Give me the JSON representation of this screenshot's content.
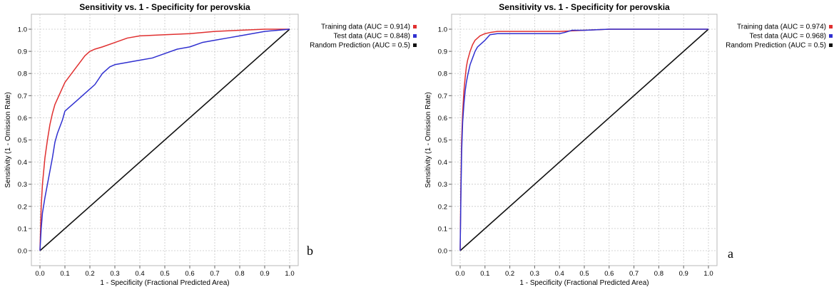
{
  "chart_data": [
    {
      "type": "line",
      "title": "Sensitivity vs. 1 - Specificity for perovskia",
      "xlabel": "1 - Specificity  (Fractional Predicted Area)",
      "ylabel": "Sensitivity  (1 - Omission Rate)",
      "xlim": [
        0,
        1
      ],
      "ylim": [
        0,
        1
      ],
      "grid": true,
      "legend_position": "outside-right-top",
      "panel_label": "b",
      "x_ticks": [
        "0.0",
        "0.1",
        "0.2",
        "0.3",
        "0.4",
        "0.5",
        "0.6",
        "0.7",
        "0.8",
        "0.9",
        "1.0"
      ],
      "y_ticks": [
        "0.0",
        "0.1",
        "0.2",
        "0.3",
        "0.4",
        "0.5",
        "0.6",
        "0.7",
        "0.8",
        "0.9",
        "1.0"
      ],
      "series": [
        {
          "name": "Training data (AUC = 0.914)",
          "color": "#e03030",
          "x": [
            0,
            0.005,
            0.01,
            0.015,
            0.02,
            0.03,
            0.04,
            0.05,
            0.06,
            0.08,
            0.1,
            0.12,
            0.14,
            0.16,
            0.18,
            0.2,
            0.22,
            0.25,
            0.3,
            0.35,
            0.4,
            0.5,
            0.6,
            0.7,
            0.8,
            0.9,
            1.0
          ],
          "y": [
            0,
            0.2,
            0.3,
            0.36,
            0.42,
            0.5,
            0.57,
            0.62,
            0.66,
            0.71,
            0.76,
            0.79,
            0.82,
            0.85,
            0.88,
            0.9,
            0.91,
            0.92,
            0.94,
            0.96,
            0.97,
            0.975,
            0.98,
            0.99,
            0.995,
            1.0,
            1.0
          ]
        },
        {
          "name": "Test data (AUC = 0.848)",
          "color": "#3030d0",
          "x": [
            0,
            0.005,
            0.01,
            0.02,
            0.03,
            0.04,
            0.05,
            0.06,
            0.07,
            0.08,
            0.09,
            0.1,
            0.12,
            0.14,
            0.16,
            0.18,
            0.2,
            0.22,
            0.25,
            0.28,
            0.3,
            0.35,
            0.4,
            0.45,
            0.5,
            0.55,
            0.6,
            0.65,
            0.7,
            0.75,
            0.8,
            0.9,
            1.0
          ],
          "y": [
            0,
            0.1,
            0.17,
            0.24,
            0.3,
            0.36,
            0.42,
            0.49,
            0.53,
            0.56,
            0.59,
            0.63,
            0.65,
            0.67,
            0.69,
            0.71,
            0.73,
            0.75,
            0.8,
            0.83,
            0.84,
            0.85,
            0.86,
            0.87,
            0.89,
            0.91,
            0.92,
            0.94,
            0.95,
            0.96,
            0.97,
            0.99,
            1.0
          ]
        },
        {
          "name": "Random Prediction (AUC = 0.5)",
          "color": "#111111",
          "x": [
            0,
            1
          ],
          "y": [
            0,
            1
          ]
        }
      ]
    },
    {
      "type": "line",
      "title": "Sensitivity vs. 1 - Specificity for perovskia",
      "xlabel": "1 - Specificity  (Fractional Predicted Area)",
      "ylabel": "Sensitivity  (1 - Omission Rate)",
      "xlim": [
        0,
        1
      ],
      "ylim": [
        0,
        1
      ],
      "grid": true,
      "legend_position": "outside-right-top",
      "panel_label": "a",
      "x_ticks": [
        "0.0",
        "0.1",
        "0.2",
        "0.3",
        "0.4",
        "0.5",
        "0.6",
        "0.7",
        "0.8",
        "0.9",
        "1.0"
      ],
      "y_ticks": [
        "0.0",
        "0.1",
        "0.2",
        "0.3",
        "0.4",
        "0.5",
        "0.6",
        "0.7",
        "0.8",
        "0.9",
        "1.0"
      ],
      "series": [
        {
          "name": "Training data (AUC = 0.974)",
          "color": "#e03030",
          "x": [
            0,
            0.003,
            0.006,
            0.01,
            0.015,
            0.02,
            0.025,
            0.03,
            0.04,
            0.05,
            0.06,
            0.08,
            0.1,
            0.12,
            0.15,
            0.2,
            0.3,
            0.4,
            0.5,
            0.6,
            0.7,
            0.8,
            0.9,
            1.0
          ],
          "y": [
            0,
            0.3,
            0.5,
            0.62,
            0.72,
            0.78,
            0.83,
            0.86,
            0.9,
            0.93,
            0.95,
            0.97,
            0.98,
            0.985,
            0.99,
            0.99,
            0.99,
            0.99,
            0.995,
            1.0,
            1.0,
            1.0,
            1.0,
            1.0
          ]
        },
        {
          "name": "Test data (AUC = 0.968)",
          "color": "#3030d0",
          "x": [
            0,
            0.003,
            0.006,
            0.01,
            0.015,
            0.02,
            0.025,
            0.03,
            0.04,
            0.05,
            0.06,
            0.07,
            0.08,
            0.1,
            0.12,
            0.15,
            0.2,
            0.3,
            0.4,
            0.42,
            0.45,
            0.5,
            0.6,
            0.7,
            0.8,
            0.9,
            1.0
          ],
          "y": [
            0,
            0.25,
            0.45,
            0.58,
            0.66,
            0.72,
            0.76,
            0.79,
            0.84,
            0.87,
            0.9,
            0.92,
            0.93,
            0.95,
            0.975,
            0.98,
            0.98,
            0.98,
            0.98,
            0.985,
            0.995,
            0.995,
            1.0,
            1.0,
            1.0,
            1.0,
            1.0
          ]
        },
        {
          "name": "Random Prediction (AUC = 0.5)",
          "color": "#111111",
          "x": [
            0,
            1
          ],
          "y": [
            0,
            1
          ]
        }
      ]
    }
  ]
}
